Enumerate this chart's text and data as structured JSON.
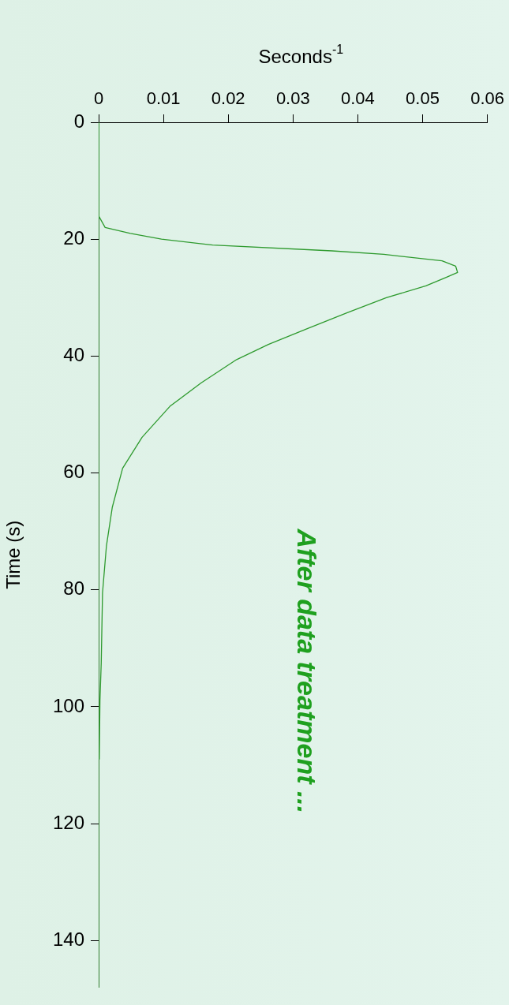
{
  "chart_data": {
    "type": "line",
    "xlabel": "Seconds$^{-1}$",
    "ylabel": "Time (s)",
    "annotations": [
      "After data treatment ..."
    ],
    "xlim": [
      0,
      0.06
    ],
    "xticks": [
      0,
      0.01,
      0.02,
      0.03,
      0.04,
      0.05,
      0.06
    ],
    "ylim": [
      148,
      0
    ],
    "yticks": [
      0,
      20,
      40,
      60,
      80,
      100,
      120,
      140
    ],
    "grid": false,
    "legend": false,
    "marker": "none",
    "line_style": "solid",
    "x": [
      0,
      0,
      0.001,
      0.0049,
      0.0097,
      0.0176,
      0.036,
      0.044,
      0.053,
      0.0551,
      0.0554,
      0.0535,
      0.0505,
      0.0444,
      0.0383,
      0.0322,
      0.0262,
      0.0213,
      0.0158,
      0.011,
      0.0067,
      0.0037,
      0.0021,
      0.0012,
      0.0006,
      0.0004,
      0.0002,
      0.0001
    ],
    "series": [
      {
        "color": "#2e9a2e",
        "values": [
          0,
          16,
          18,
          19,
          20,
          21,
          22,
          22.6,
          23.7,
          24.6,
          25.7,
          26.6,
          28,
          30,
          32.6,
          35.3,
          38,
          40.6,
          44.6,
          48.6,
          53.9,
          59.2,
          65.9,
          72.5,
          80.5,
          92.5,
          99,
          109
        ]
      }
    ]
  }
}
